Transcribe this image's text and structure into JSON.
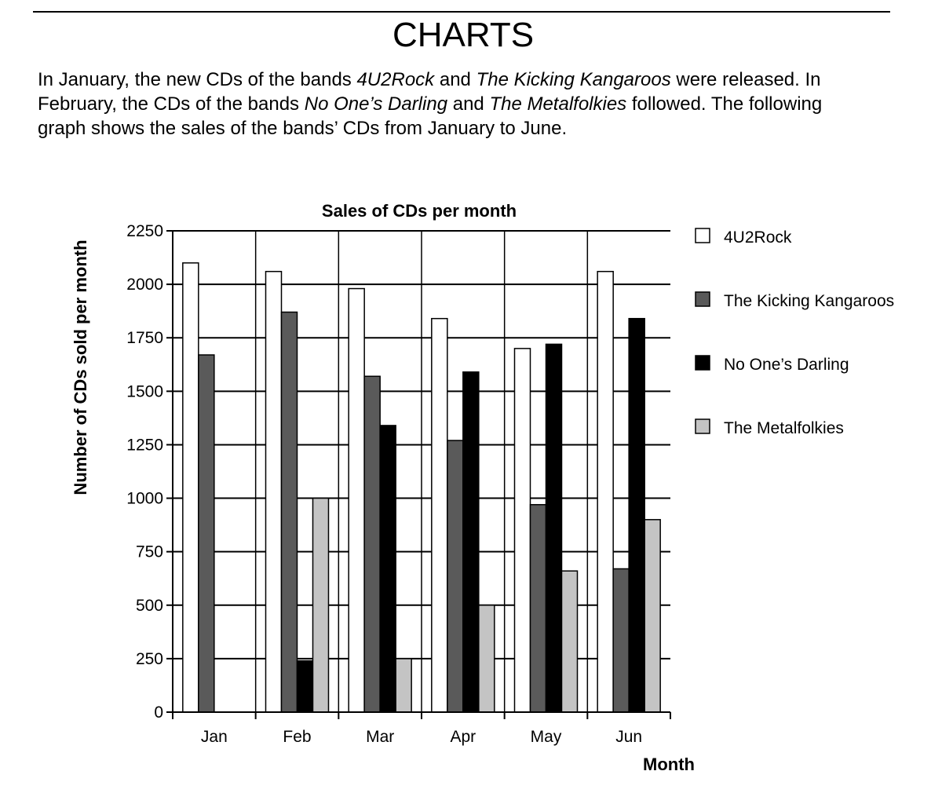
{
  "page": {
    "heading": "CHARTS",
    "intro": {
      "p1": "In January, the new CDs of the bands ",
      "band1": "4U2Rock",
      "p2": " and ",
      "band2": "The Kicking Kangaroos",
      "p3": " were released. In February, the CDs of the bands ",
      "band3": "No One’s Darling",
      "p4": " and ",
      "band4": "The Metalfolkies",
      "p5": " followed. The following graph shows the sales of the bands’ CDs from January to June."
    }
  },
  "chart_data": {
    "type": "bar",
    "title": "Sales of CDs per month",
    "xlabel": "Month",
    "ylabel": "Number of CDs sold per month",
    "ylim": [
      0,
      2250
    ],
    "yticks": [
      0,
      250,
      500,
      750,
      1000,
      1250,
      1500,
      1750,
      2000,
      2250
    ],
    "grid": true,
    "legend_position": "right",
    "categories": [
      "Jan",
      "Feb",
      "Mar",
      "Apr",
      "May",
      "Jun"
    ],
    "series": [
      {
        "name": "4U2Rock",
        "color": "#ffffff",
        "values": [
          2100,
          2060,
          1980,
          1840,
          1700,
          2060
        ]
      },
      {
        "name": "The Kicking Kangaroos",
        "color": "#5a5a5a",
        "values": [
          1670,
          1870,
          1570,
          1270,
          970,
          670
        ]
      },
      {
        "name": "No One’s Darling",
        "color": "#000000",
        "values": [
          0,
          240,
          1340,
          1590,
          1720,
          1840
        ]
      },
      {
        "name": "The Metalfolkies",
        "color": "#c4c4c4",
        "values": [
          0,
          1000,
          250,
          500,
          660,
          900
        ]
      }
    ]
  }
}
